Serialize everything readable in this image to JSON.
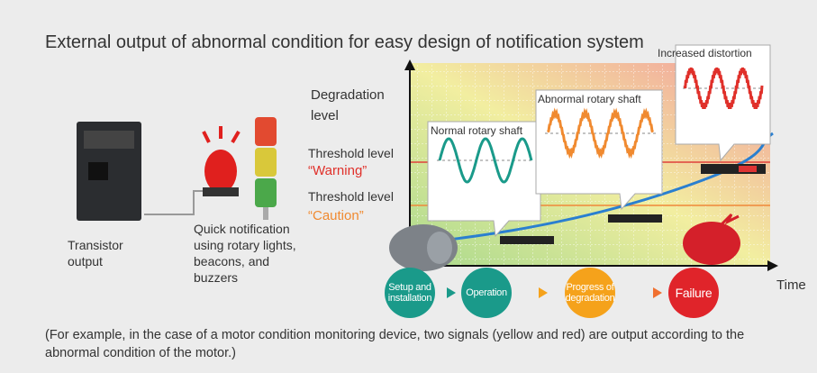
{
  "title": "External output of abnormal condition for easy design of notification system",
  "devices": {
    "transistor": "Transistor output",
    "notification": "Quick notification using rotary lights, beacons, and buzzers"
  },
  "graph": {
    "y_label": "Degradation level",
    "x_label": "Time",
    "thresholds": [
      {
        "label": "Threshold level",
        "level": "“Warning”"
      },
      {
        "label": "Threshold level",
        "level": "“Caution”"
      }
    ],
    "callouts": [
      "Normal rotary shaft",
      "Abnormal rotary shaft",
      "Increased distortion"
    ],
    "stages": [
      "Setup and installation",
      "Operation",
      "Progress of degradation",
      "Failure"
    ]
  },
  "note": "(For example, in the case of a motor condition monitoring device, two signals (yellow and red) are output according to the abnormal condition of the motor.)"
}
